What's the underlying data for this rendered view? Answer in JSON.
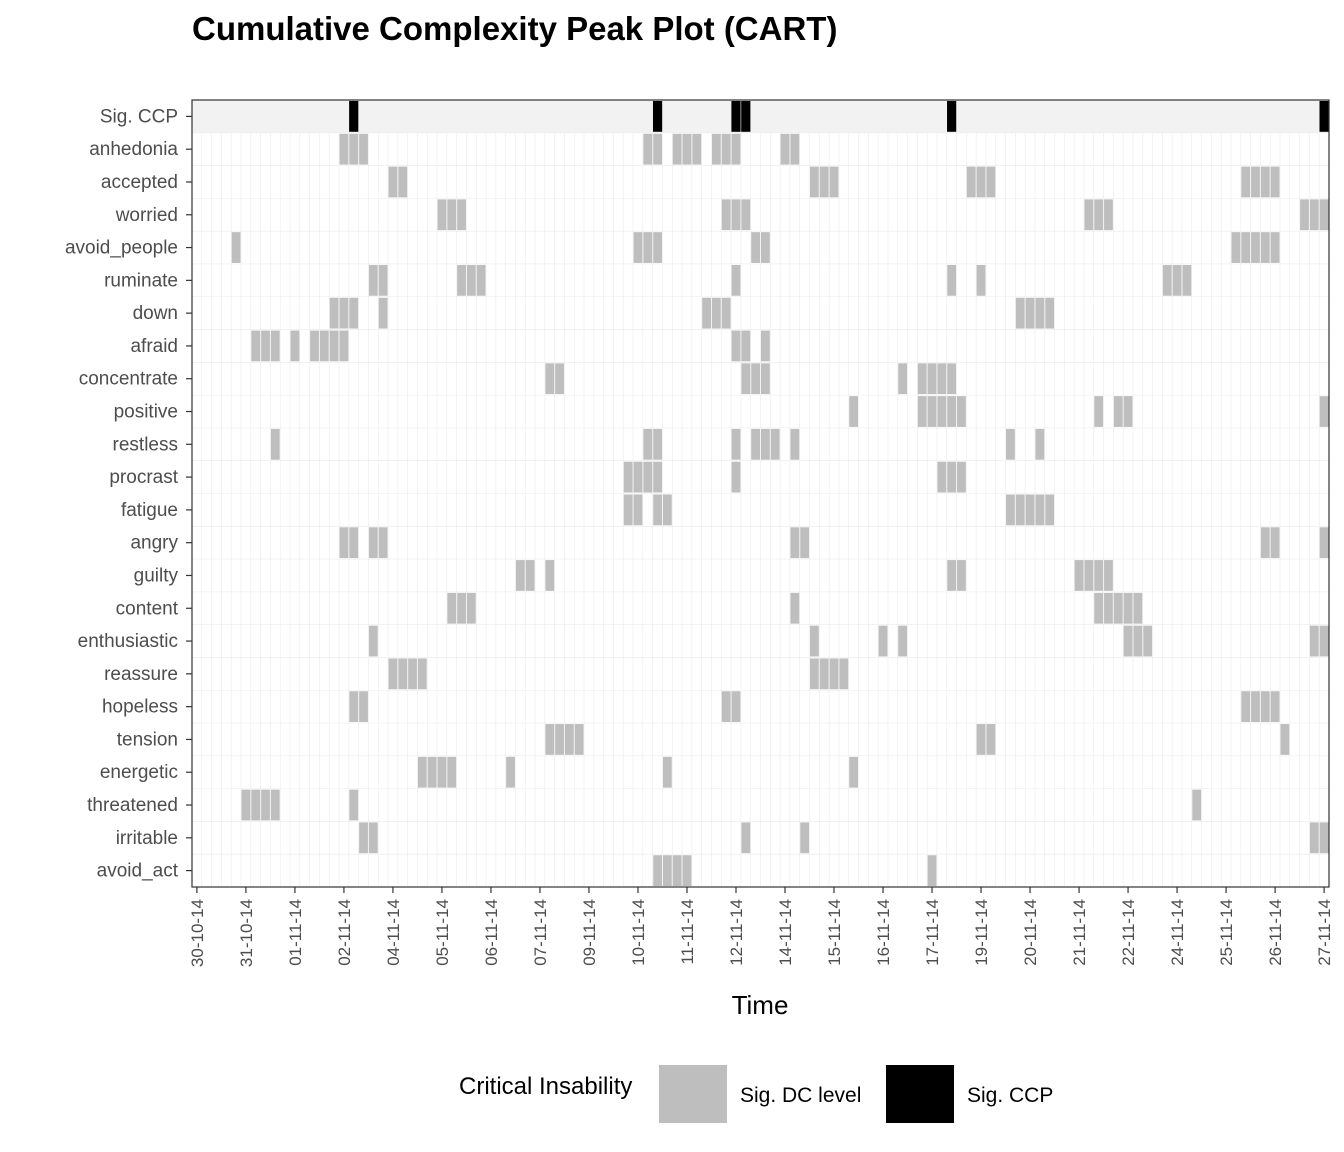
{
  "chart_data": {
    "type": "heatmap",
    "title": "Cumulative Complexity Peak Plot (CART)",
    "xlabel": "Time",
    "ylabel": "",
    "n_time_points": 116,
    "grid": true,
    "x_tick_labels": [
      "30-10-14",
      "31-10-14",
      "01-11-14",
      "02-11-14",
      "04-11-14",
      "05-11-14",
      "06-11-14",
      "07-11-14",
      "09-11-14",
      "10-11-14",
      "11-11-14",
      "12-11-14",
      "14-11-14",
      "15-11-14",
      "16-11-14",
      "17-11-14",
      "19-11-14",
      "20-11-14",
      "21-11-14",
      "22-11-14",
      "24-11-14",
      "25-11-14",
      "26-11-14",
      "27-11-14"
    ],
    "x_tick_index": [
      0,
      5,
      10,
      15,
      20,
      25,
      30,
      35,
      40,
      45,
      50,
      55,
      60,
      65,
      70,
      75,
      80,
      85,
      90,
      95,
      100,
      105,
      110,
      115
    ],
    "rows": [
      {
        "label": "Sig. CCP",
        "kind": "ccp",
        "cells": [
          16,
          47,
          55,
          56,
          77,
          115
        ]
      },
      {
        "label": "anhedonia",
        "kind": "dc",
        "cells": [
          15,
          16,
          17,
          46,
          47,
          49,
          50,
          51,
          53,
          54,
          55,
          60,
          61
        ]
      },
      {
        "label": "accepted",
        "kind": "dc",
        "cells": [
          20,
          21,
          63,
          64,
          65,
          79,
          80,
          81,
          107,
          108,
          109,
          110
        ]
      },
      {
        "label": "worried",
        "kind": "dc",
        "cells": [
          25,
          26,
          27,
          54,
          55,
          56,
          91,
          92,
          93,
          113,
          114,
          115
        ]
      },
      {
        "label": "avoid_people",
        "kind": "dc",
        "cells": [
          4,
          45,
          46,
          47,
          57,
          58,
          106,
          107,
          108,
          109,
          110
        ]
      },
      {
        "label": "ruminate",
        "kind": "dc",
        "cells": [
          18,
          19,
          27,
          28,
          29,
          55,
          77,
          80,
          99,
          100,
          101
        ]
      },
      {
        "label": "down",
        "kind": "dc",
        "cells": [
          14,
          15,
          16,
          19,
          52,
          53,
          54,
          84,
          85,
          86,
          87
        ]
      },
      {
        "label": "afraid",
        "kind": "dc",
        "cells": [
          6,
          7,
          8,
          10,
          12,
          13,
          14,
          15,
          55,
          56,
          58
        ]
      },
      {
        "label": "concentrate",
        "kind": "dc",
        "cells": [
          36,
          37,
          56,
          57,
          58,
          72,
          74,
          75,
          76,
          77
        ]
      },
      {
        "label": "positive",
        "kind": "dc",
        "cells": [
          67,
          74,
          75,
          76,
          77,
          78,
          92,
          94,
          95,
          115
        ]
      },
      {
        "label": "restless",
        "kind": "dc",
        "cells": [
          8,
          46,
          47,
          55,
          57,
          58,
          59,
          61,
          83,
          86
        ]
      },
      {
        "label": "procrast",
        "kind": "dc",
        "cells": [
          44,
          45,
          46,
          47,
          55,
          76,
          77,
          78
        ]
      },
      {
        "label": "fatigue",
        "kind": "dc",
        "cells": [
          44,
          45,
          47,
          48,
          83,
          84,
          85,
          86,
          87
        ]
      },
      {
        "label": "angry",
        "kind": "dc",
        "cells": [
          15,
          16,
          18,
          19,
          61,
          62,
          109,
          110,
          115
        ]
      },
      {
        "label": "guilty",
        "kind": "dc",
        "cells": [
          33,
          34,
          36,
          77,
          78,
          90,
          91,
          92,
          93
        ]
      },
      {
        "label": "content",
        "kind": "dc",
        "cells": [
          26,
          27,
          28,
          61,
          92,
          93,
          94,
          95,
          96
        ]
      },
      {
        "label": "enthusiastic",
        "kind": "dc",
        "cells": [
          18,
          63,
          70,
          72,
          95,
          96,
          97,
          114,
          115
        ]
      },
      {
        "label": "reassure",
        "kind": "dc",
        "cells": [
          20,
          21,
          22,
          23,
          63,
          64,
          65,
          66
        ]
      },
      {
        "label": "hopeless",
        "kind": "dc",
        "cells": [
          16,
          17,
          54,
          55,
          107,
          108,
          109,
          110
        ]
      },
      {
        "label": "tension",
        "kind": "dc",
        "cells": [
          36,
          37,
          38,
          39,
          80,
          81,
          111
        ]
      },
      {
        "label": "energetic",
        "kind": "dc",
        "cells": [
          23,
          24,
          25,
          26,
          32,
          48,
          67
        ]
      },
      {
        "label": "threatened",
        "kind": "dc",
        "cells": [
          5,
          6,
          7,
          8,
          16,
          102
        ]
      },
      {
        "label": "irritable",
        "kind": "dc",
        "cells": [
          17,
          18,
          56,
          62,
          114,
          115
        ]
      },
      {
        "label": "avoid_act",
        "kind": "dc",
        "cells": [
          47,
          48,
          49,
          50,
          75
        ]
      }
    ],
    "legend": {
      "title": "Critical Insability",
      "position": "bottom",
      "items": [
        {
          "label": "Sig. DC level",
          "color": "#bebebe"
        },
        {
          "label": "Sig. CCP",
          "color": "#000000"
        }
      ]
    },
    "colors": {
      "dc": "#bebebe",
      "ccp": "#000000",
      "ccp_background": "#f2f2f2",
      "grid": "#ebebeb",
      "panel_border": "#333333"
    }
  }
}
